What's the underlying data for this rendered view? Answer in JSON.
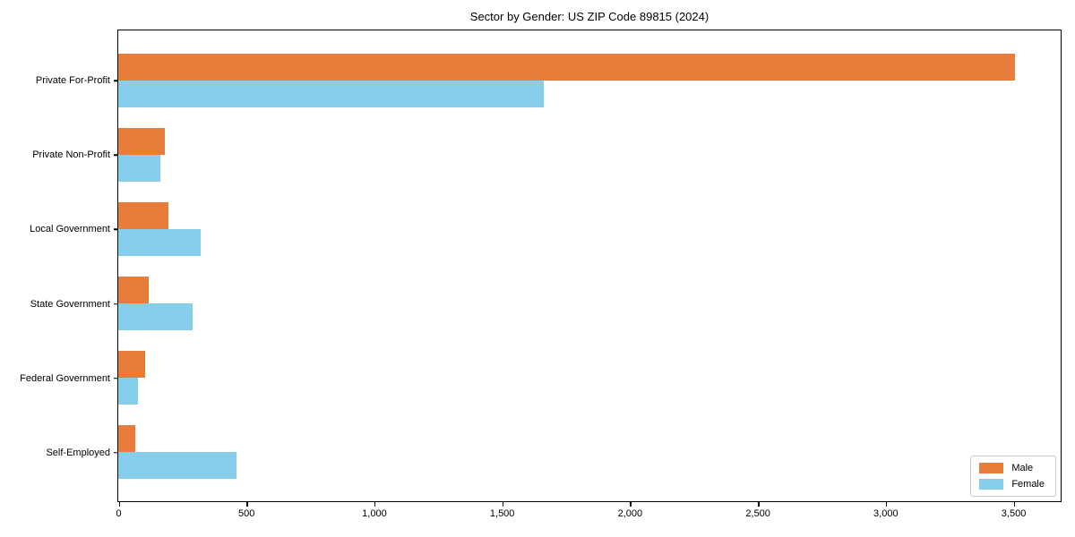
{
  "title": "Sector by Gender: US ZIP Code 89815 (2024)",
  "chart_data": {
    "type": "bar",
    "orientation": "horizontal",
    "title": "Sector by Gender: US ZIP Code 89815 (2024)",
    "categories": [
      "Private For-Profit",
      "Private Non-Profit",
      "Local Government",
      "State Government",
      "Federal Government",
      "Self-Employed"
    ],
    "series": [
      {
        "name": "Male",
        "color": "#E87D3B",
        "values": [
          3507,
          183,
          197,
          120,
          105,
          67
        ]
      },
      {
        "name": "Female",
        "color": "#87CEEB",
        "values": [
          1665,
          165,
          322,
          290,
          78,
          462
        ]
      }
    ],
    "xlim": [
      0,
      3682
    ],
    "x_ticks": [
      0,
      500,
      1000,
      1500,
      2000,
      2500,
      3000,
      3500
    ],
    "x_tick_labels": [
      "0",
      "500",
      "1,000",
      "1,500",
      "2,000",
      "2,500",
      "3,000",
      "3,500"
    ],
    "xlabel": "",
    "ylabel": "",
    "grid": false,
    "legend": {
      "position": "lower right",
      "entries": [
        "Male",
        "Female"
      ]
    },
    "colors": {
      "male": "#E87D3B",
      "female": "#87CEEB",
      "spine": "#000000",
      "background": "#ffffff"
    }
  }
}
